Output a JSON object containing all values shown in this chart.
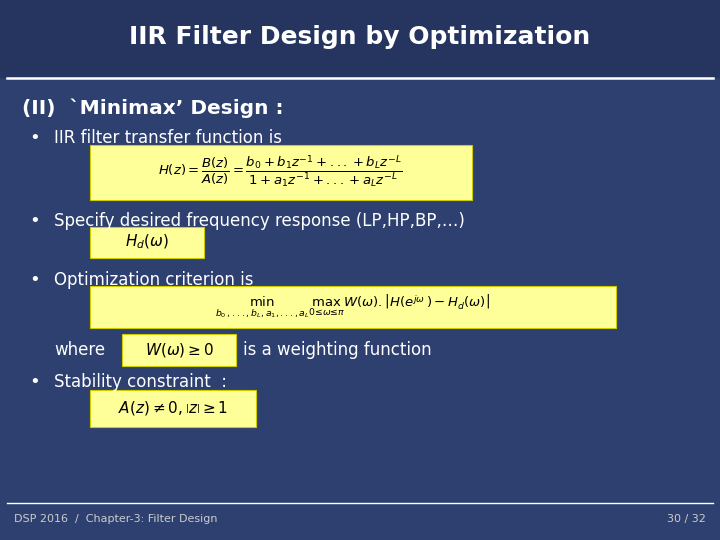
{
  "title": "IIR Filter Design by Optimization",
  "title_color": "#FFFFFF",
  "bg_color": "#2E4070",
  "header_bg_color": "#253560",
  "yellow_box_color": "#FFFF99",
  "yellow_edge_color": "#CCCC00",
  "text_color": "#FFFFFF",
  "footer_color": "#CCCCCC",
  "footer_left": "DSP 2016  /  Chapter-3: Filter Design",
  "footer_right": "30 / 32",
  "section_title": "(II)  `Minimax’ Design :",
  "bullet1": "IIR filter transfer function is",
  "bullet2": "Specify desired frequency response (LP,HP,BP,…)",
  "bullet3": "Optimization criterion is",
  "where_text": "where",
  "where_text2": "is a weighting function",
  "bullet4": "Stability constraint  :"
}
